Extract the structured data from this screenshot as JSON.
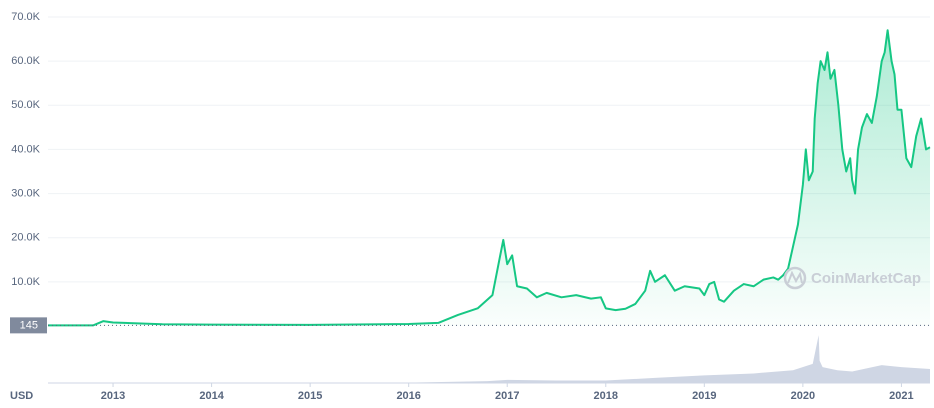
{
  "chart_data": {
    "type": "line",
    "currency": "USD",
    "watermark": "CoinMarketCap",
    "color": "#16c784",
    "x": [
      2012.34,
      2012.8,
      2012.9,
      2013.0,
      2013.5,
      2014.0,
      2015.0,
      2016.0,
      2016.3,
      2016.5,
      2016.7,
      2016.85,
      2016.92,
      2016.96,
      2017.0,
      2017.05,
      2017.1,
      2017.2,
      2017.3,
      2017.4,
      2017.55,
      2017.7,
      2017.85,
      2017.95,
      2018.0,
      2018.1,
      2018.2,
      2018.3,
      2018.4,
      2018.45,
      2018.5,
      2018.6,
      2018.7,
      2018.8,
      2018.95,
      2019.0,
      2019.05,
      2019.1,
      2019.15,
      2019.2,
      2019.3,
      2019.4,
      2019.5,
      2019.6,
      2019.7,
      2019.75,
      2019.8,
      2019.85,
      2019.9,
      2019.95,
      2020.0,
      2020.03,
      2020.06,
      2020.1,
      2020.12,
      2020.15,
      2020.18,
      2020.22,
      2020.25,
      2020.28,
      2020.32,
      2020.36,
      2020.4,
      2020.44,
      2020.48,
      2020.5,
      2020.53,
      2020.56,
      2020.6,
      2020.65,
      2020.7,
      2020.75,
      2020.8,
      2020.83,
      2020.86,
      2020.9,
      2020.93,
      2020.96,
      2021.0,
      2021.05,
      2021.1,
      2021.15,
      2021.2,
      2021.25,
      2021.29
    ],
    "values": [
      145,
      150,
      1100,
      800,
      400,
      300,
      250,
      450,
      700,
      2500,
      4000,
      7000,
      15000,
      19500,
      14000,
      16000,
      9000,
      8500,
      6500,
      7500,
      6500,
      7000,
      6200,
      6500,
      4000,
      3600,
      3900,
      5000,
      8000,
      12500,
      10000,
      11500,
      8000,
      9000,
      8500,
      7000,
      9500,
      10000,
      6000,
      5500,
      8000,
      9500,
      9000,
      10500,
      11000,
      10500,
      11500,
      13000,
      18000,
      23000,
      32000,
      40000,
      33000,
      35000,
      47000,
      55000,
      60000,
      58000,
      62000,
      56000,
      58000,
      50000,
      40000,
      35000,
      38000,
      33000,
      30000,
      40000,
      45000,
      48000,
      46000,
      52000,
      60000,
      62000,
      67000,
      60000,
      57000,
      49000,
      49000,
      38000,
      36000,
      43000,
      47000,
      40000,
      40500
    ],
    "start_price": 145,
    "xlim": [
      2012.34,
      2021.29
    ],
    "xticks": [
      2013,
      2014,
      2015,
      2016,
      2017,
      2018,
      2019,
      2020,
      2021
    ],
    "ylim": [
      0,
      70000
    ],
    "yticks": [
      {
        "value": 10000,
        "label": "10.0K"
      },
      {
        "value": 20000,
        "label": "20.0K"
      },
      {
        "value": 30000,
        "label": "30.0K"
      },
      {
        "value": 40000,
        "label": "40.0K"
      },
      {
        "value": 50000,
        "label": "50.0K"
      },
      {
        "value": 60000,
        "label": "60.0K"
      },
      {
        "value": 70000,
        "label": "70.0K"
      }
    ],
    "grid": true,
    "volume": {
      "color": "#cfd6e4",
      "x": [
        2012.34,
        2013.0,
        2014.0,
        2015.0,
        2016.0,
        2016.8,
        2017.0,
        2017.5,
        2018.0,
        2018.5,
        2019.0,
        2019.5,
        2019.9,
        2020.1,
        2020.16,
        2020.17,
        2020.2,
        2020.35,
        2020.5,
        2020.8,
        2021.0,
        2021.29
      ],
      "values": [
        0.1,
        0.1,
        0.2,
        0.3,
        0.5,
        3,
        5,
        4,
        4,
        8,
        12,
        15,
        20,
        30,
        75,
        35,
        25,
        20,
        18,
        28,
        25,
        22
      ]
    },
    "volume_ylim": [
      0,
      80
    ]
  }
}
